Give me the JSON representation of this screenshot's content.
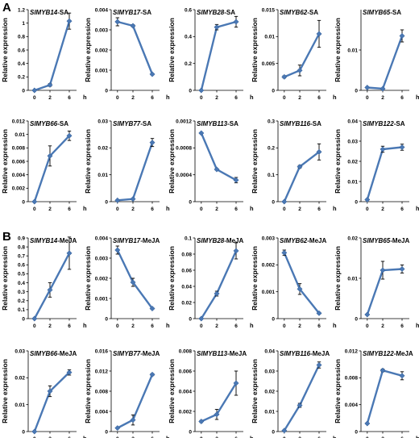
{
  "panel_labels": [
    "A",
    "B"
  ],
  "chart_data": [
    {
      "type": "line",
      "panel": "A",
      "title_gene": "SlMYB14",
      "title_suffix": "-SA",
      "x": [
        0,
        2,
        6
      ],
      "x_unit": "h",
      "xlabel": "",
      "ylabel": "Relative expression",
      "ylim": [
        0,
        1.2
      ],
      "yticks": [
        "0",
        "0.2",
        "0.4",
        "0.6",
        "0.8",
        "1",
        "1.2"
      ],
      "series": [
        {
          "values": [
            0.0,
            0.08,
            1.03
          ],
          "errors": [
            0.005,
            0.02,
            0.12
          ]
        }
      ]
    },
    {
      "type": "line",
      "panel": "A",
      "title_gene": "SlMYB17",
      "title_suffix": "-SA",
      "x": [
        0,
        2,
        6
      ],
      "x_unit": "h",
      "xlabel": "",
      "ylabel": "Relative expression",
      "ylim": [
        0,
        0.004
      ],
      "yticks": [
        "0",
        "0.001",
        "0.002",
        "0.003",
        "0.004"
      ],
      "series": [
        {
          "values": [
            0.0034,
            0.0032,
            0.0008
          ],
          "errors": [
            0.0002,
            5e-05,
            3e-05
          ]
        }
      ]
    },
    {
      "type": "line",
      "panel": "A",
      "title_gene": "SlMYB28",
      "title_suffix": "-SA",
      "x": [
        0,
        2,
        6
      ],
      "x_unit": "h",
      "xlabel": "",
      "ylabel": "Relative expression",
      "ylim": [
        0,
        0.6
      ],
      "yticks": [
        "0",
        "0.2",
        "0.4",
        "0.6"
      ],
      "series": [
        {
          "values": [
            0.0,
            0.47,
            0.51
          ],
          "errors": [
            0.0,
            0.02,
            0.04
          ]
        }
      ]
    },
    {
      "type": "line",
      "panel": "A",
      "title_gene": "SlMYB62",
      "title_suffix": "-SA",
      "x": [
        0,
        2,
        6
      ],
      "x_unit": "h",
      "xlabel": "",
      "ylabel": "Relative expression",
      "ylim": [
        0,
        0.015
      ],
      "yticks": [
        "0",
        "0.005",
        "0.01",
        "0.015"
      ],
      "series": [
        {
          "values": [
            0.0025,
            0.0037,
            0.0105
          ],
          "errors": [
            0.0002,
            0.001,
            0.0025
          ]
        }
      ]
    },
    {
      "type": "line",
      "panel": "A",
      "title_gene": "SlMYB65",
      "title_suffix": "-SA",
      "x": [
        0,
        2,
        6
      ],
      "x_unit": "h",
      "xlabel": "",
      "ylabel": "Relative expression",
      "ylim": [
        0,
        0.02
      ],
      "yticks": [
        "0",
        "0.01"
      ],
      "series": [
        {
          "values": [
            0.0007,
            0.0004,
            0.0135
          ],
          "errors": [
            0.0001,
            0.0001,
            0.0015
          ]
        }
      ]
    },
    {
      "type": "line",
      "panel": "A",
      "title_gene": "SlMYB66",
      "title_suffix": "-SA",
      "x": [
        0,
        2,
        6
      ],
      "x_unit": "h",
      "xlabel": "",
      "ylabel": "Relative expression",
      "ylim": [
        0,
        0.012
      ],
      "yticks": [
        "0",
        "0.002",
        "0.004",
        "0.006",
        "0.008",
        "0.01",
        "0.012"
      ],
      "series": [
        {
          "values": [
            0.0,
            0.0068,
            0.0098
          ],
          "errors": [
            0.0,
            0.0015,
            0.0007
          ]
        }
      ]
    },
    {
      "type": "line",
      "panel": "A",
      "title_gene": "SlMYB77",
      "title_suffix": "-SA",
      "x": [
        0,
        2,
        6
      ],
      "x_unit": "h",
      "xlabel": "",
      "ylabel": "Relative expression",
      "ylim": [
        0,
        0.03
      ],
      "yticks": [
        "0",
        "0.01",
        "0.02",
        "0.03"
      ],
      "series": [
        {
          "values": [
            0.0005,
            0.001,
            0.022
          ],
          "errors": [
            0.0002,
            0.0002,
            0.0015
          ]
        }
      ]
    },
    {
      "type": "line",
      "panel": "A",
      "title_gene": "SlMYB113",
      "title_suffix": "-SA",
      "x": [
        0,
        2,
        6
      ],
      "x_unit": "h",
      "xlabel": "",
      "ylabel": "Relative expression",
      "ylim": [
        0,
        0.0012
      ],
      "yticks": [
        "0",
        "0.0004",
        "0.0008",
        "0.0012"
      ],
      "series": [
        {
          "values": [
            0.00102,
            0.00048,
            0.00032
          ],
          "errors": [
            1e-05,
            1e-05,
            4e-05
          ]
        }
      ]
    },
    {
      "type": "line",
      "panel": "A",
      "title_gene": "SlMYB116",
      "title_suffix": "-SA",
      "x": [
        0,
        2,
        6
      ],
      "x_unit": "h",
      "xlabel": "",
      "ylabel": "Relative expression",
      "ylim": [
        0,
        0.3
      ],
      "yticks": [
        "0",
        "0.1",
        "0.2",
        "0.3"
      ],
      "series": [
        {
          "values": [
            0.0,
            0.13,
            0.185
          ],
          "errors": [
            0.0,
            0.005,
            0.03
          ]
        }
      ]
    },
    {
      "type": "line",
      "panel": "A",
      "title_gene": "SlMYB122",
      "title_suffix": "-SA",
      "x": [
        0,
        2,
        6
      ],
      "x_unit": "h",
      "xlabel": "",
      "ylabel": "Relative expression",
      "ylim": [
        0,
        0.04
      ],
      "yticks": [
        "0",
        "0.01",
        "0.02",
        "0.03",
        "0.04"
      ],
      "series": [
        {
          "values": [
            0.001,
            0.026,
            0.027
          ],
          "errors": [
            0.0,
            0.0015,
            0.0015
          ]
        }
      ]
    },
    {
      "type": "line",
      "panel": "B",
      "title_gene": "SlMYB14",
      "title_suffix": "-MeJA",
      "x": [
        0,
        2,
        6
      ],
      "x_unit": "h",
      "xlabel": "",
      "ylabel": "Relative expression",
      "ylim": [
        0,
        0.9
      ],
      "yticks": [
        "0",
        "0.1",
        "0.2",
        "0.3",
        "0.4",
        "0.5",
        "0.6",
        "0.7",
        "0.8",
        "0.9"
      ],
      "series": [
        {
          "values": [
            0.0,
            0.32,
            0.73
          ],
          "errors": [
            0.005,
            0.08,
            0.18
          ]
        }
      ]
    },
    {
      "type": "line",
      "panel": "B",
      "title_gene": "SlMYB17",
      "title_suffix": "-MeJA",
      "x": [
        0,
        2,
        6
      ],
      "x_unit": "h",
      "xlabel": "",
      "ylabel": "Relative expression",
      "ylim": [
        0,
        0.004
      ],
      "yticks": [
        "0",
        "0.001",
        "0.002",
        "0.003",
        "0.004"
      ],
      "series": [
        {
          "values": [
            0.0034,
            0.0018,
            0.0005
          ],
          "errors": [
            0.0002,
            0.0002,
            3e-05
          ]
        }
      ]
    },
    {
      "type": "line",
      "panel": "B",
      "title_gene": "SlMYB28",
      "title_suffix": "-MeJA",
      "x": [
        0,
        2,
        6
      ],
      "x_unit": "h",
      "xlabel": "",
      "ylabel": "Relative expression",
      "ylim": [
        0,
        0.1
      ],
      "yticks": [
        "0",
        "0.02",
        "0.04",
        "0.06",
        "0.08",
        "0.1"
      ],
      "series": [
        {
          "values": [
            0.0,
            0.031,
            0.084
          ],
          "errors": [
            0.0,
            0.003,
            0.01
          ]
        }
      ]
    },
    {
      "type": "line",
      "panel": "B",
      "title_gene": "SlMYB62",
      "title_suffix": "-MeJA",
      "x": [
        0,
        2,
        6
      ],
      "x_unit": "h",
      "xlabel": "",
      "ylabel": "Relative expression",
      "ylim": [
        0,
        0.003
      ],
      "yticks": [
        "0",
        "0.001",
        "0.002",
        "0.003"
      ],
      "series": [
        {
          "values": [
            0.00245,
            0.0011,
            0.0002
          ],
          "errors": [
            0.0001,
            0.0002,
            3e-05
          ]
        }
      ]
    },
    {
      "type": "line",
      "panel": "B",
      "title_gene": "SlMYB65",
      "title_suffix": "-MeJA",
      "x": [
        0,
        2,
        6
      ],
      "x_unit": "h",
      "xlabel": "",
      "ylabel": "Relative expression",
      "ylim": [
        0,
        0.02
      ],
      "yticks": [
        "0",
        "0.01",
        "0.02"
      ],
      "series": [
        {
          "values": [
            0.001,
            0.012,
            0.0123
          ],
          "errors": [
            0.0001,
            0.0022,
            0.001
          ]
        }
      ]
    },
    {
      "type": "line",
      "panel": "B",
      "title_gene": "SlMYB66",
      "title_suffix": "-MeJA",
      "x": [
        0,
        2,
        6
      ],
      "x_unit": "h",
      "xlabel": "",
      "ylabel": "Relative expression",
      "ylim": [
        0,
        0.03
      ],
      "yticks": [
        "0",
        "0.01",
        "0.02",
        "0.03"
      ],
      "series": [
        {
          "values": [
            0.0,
            0.015,
            0.022
          ],
          "errors": [
            0.0,
            0.002,
            0.001
          ]
        }
      ]
    },
    {
      "type": "line",
      "panel": "B",
      "title_gene": "SlMYB77",
      "title_suffix": "-MeJA",
      "x": [
        0,
        2,
        6
      ],
      "x_unit": "h",
      "xlabel": "",
      "ylabel": "Relative expression",
      "ylim": [
        0,
        0.016
      ],
      "yticks": [
        "0",
        "0.004",
        "0.008",
        "0.012",
        "0.016"
      ],
      "series": [
        {
          "values": [
            0.0007,
            0.0023,
            0.0113
          ],
          "errors": [
            0.0001,
            0.001,
            0.0002
          ]
        }
      ]
    },
    {
      "type": "line",
      "panel": "B",
      "title_gene": "SlMYB113",
      "title_suffix": "-MeJA",
      "x": [
        0,
        2,
        6
      ],
      "x_unit": "h",
      "xlabel": "",
      "ylabel": "Relative expression",
      "ylim": [
        0,
        0.008
      ],
      "yticks": [
        "0",
        "0.002",
        "0.004",
        "0.006",
        "0.008"
      ],
      "series": [
        {
          "values": [
            0.001,
            0.0017,
            0.0048
          ],
          "errors": [
            0.0001,
            0.0005,
            0.0012
          ]
        }
      ]
    },
    {
      "type": "line",
      "panel": "B",
      "title_gene": "SlMYB116",
      "title_suffix": "-MeJA",
      "x": [
        0,
        2,
        6
      ],
      "x_unit": "h",
      "xlabel": "",
      "ylabel": "Relative expression",
      "ylim": [
        0,
        0.04
      ],
      "yticks": [
        "0",
        "0.01",
        "0.02",
        "0.03",
        "0.04"
      ],
      "series": [
        {
          "values": [
            0.0005,
            0.013,
            0.033
          ],
          "errors": [
            0.0001,
            0.001,
            0.0015
          ]
        }
      ]
    },
    {
      "type": "line",
      "panel": "B",
      "title_gene": "SlMYB122",
      "title_suffix": "-MeJA",
      "x": [
        0,
        2,
        6
      ],
      "x_unit": "h",
      "xlabel": "",
      "ylabel": "Relative expression",
      "ylim": [
        0,
        0.012
      ],
      "yticks": [
        "0",
        "0.004",
        "0.008",
        "0.012"
      ],
      "series": [
        {
          "values": [
            0.0012,
            0.0091,
            0.0083
          ],
          "errors": [
            0.0001,
            0.0002,
            0.0006
          ]
        }
      ]
    }
  ]
}
